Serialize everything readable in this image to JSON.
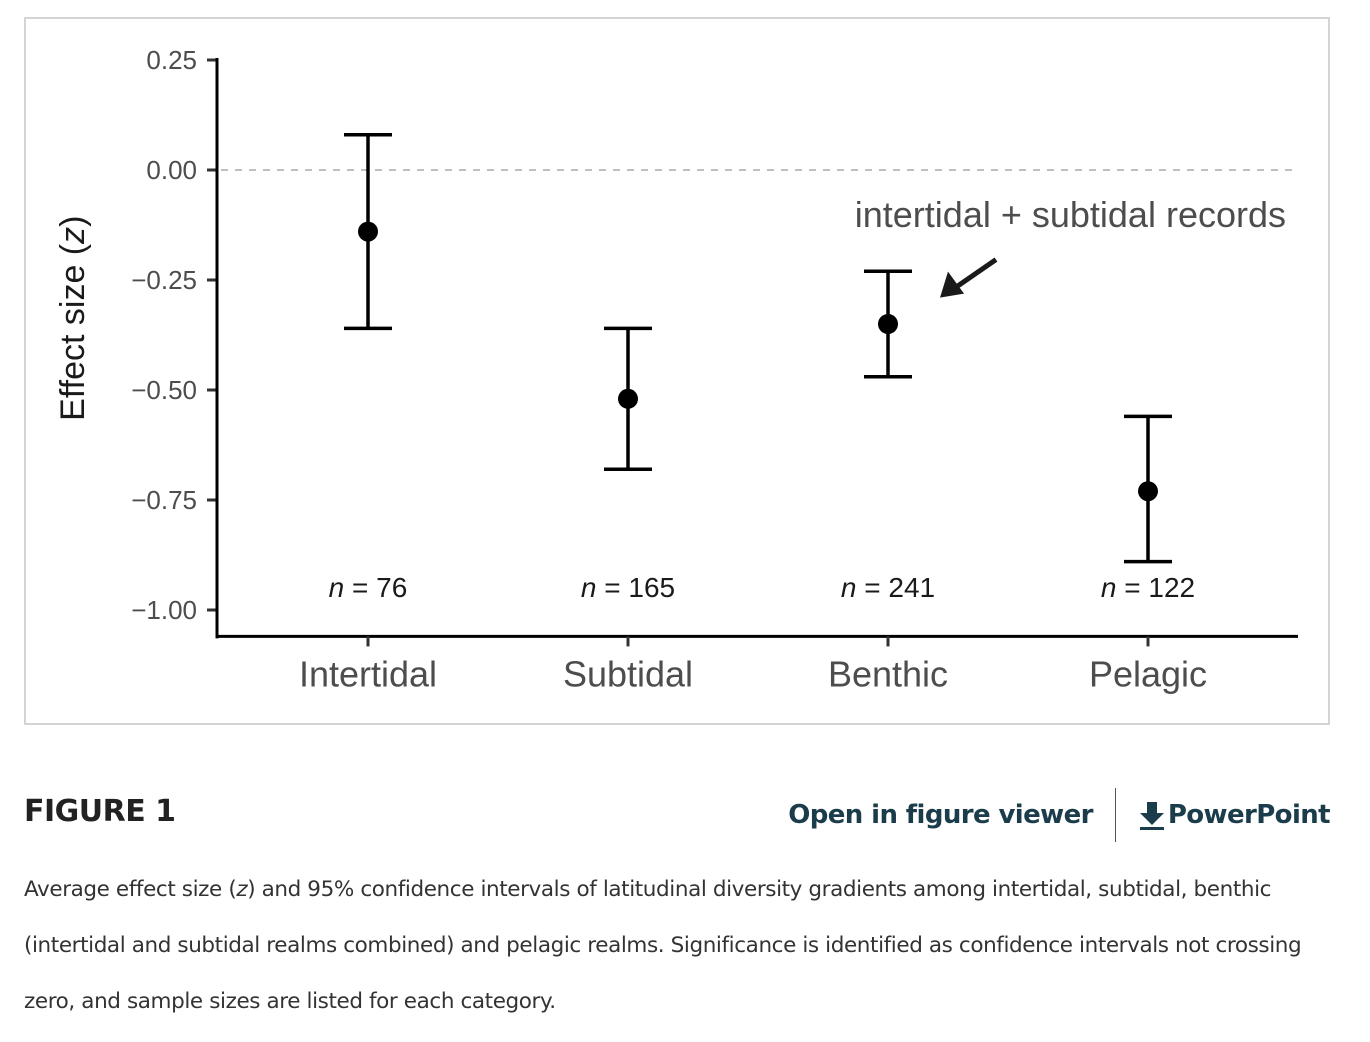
{
  "figure": {
    "title": "FIGURE 1",
    "links": {
      "open_viewer": "Open in figure viewer",
      "powerpoint": "PowerPoint",
      "powerpoint_icon": "download-icon"
    },
    "caption": {
      "before_italic": "Average effect size (",
      "italic": "z",
      "after_italic": ") and 95% confidence intervals of latitudinal diversity gradients among intertidal, subtidal, benthic (intertidal and subtidal realms combined) and pelagic realms. Significance is identified as confidence intervals not crossing zero, and sample sizes are listed for each category."
    }
  },
  "chart_data": {
    "type": "scatter",
    "subtype": "point-with-error-bars",
    "title": "",
    "xlabel": "",
    "ylabel": "Effect size (z)",
    "ylabel_parts": {
      "text": "Effect size (",
      "italic": "z",
      "close": ")"
    },
    "categories": [
      "Intertidal",
      "Subtidal",
      "Benthic",
      "Pelagic"
    ],
    "values": [
      -0.14,
      -0.52,
      -0.35,
      -0.73
    ],
    "ci_lower": [
      -0.36,
      -0.68,
      -0.47,
      -0.89
    ],
    "ci_upper": [
      0.08,
      -0.36,
      -0.23,
      -0.56
    ],
    "n": [
      76,
      165,
      241,
      122
    ],
    "n_label_prefix": "n",
    "ylim": [
      -1.06,
      0.25
    ],
    "yticks": [
      0.25,
      0.0,
      -0.25,
      -0.5,
      -0.75,
      -1.0
    ],
    "ytick_labels": [
      "0.25",
      "0.00",
      "−0.25",
      "−0.50",
      "−0.75",
      "−1.00"
    ],
    "reference_line": {
      "y": 0.0,
      "style": "dashed",
      "color": "#bfbfbf"
    },
    "annotation": {
      "text": "intertidal + subtidal records",
      "points_to": "Benthic"
    },
    "grid": false,
    "legend": "none",
    "colors": {
      "marks": "#000000",
      "text": "#4d4d4d"
    }
  }
}
